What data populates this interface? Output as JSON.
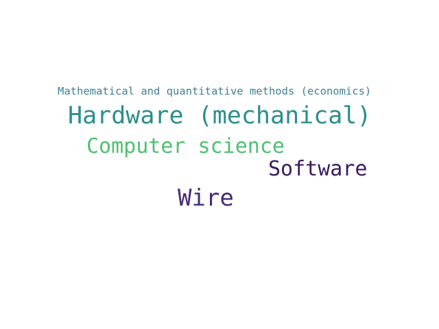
{
  "words": [
    {
      "text": "Mathematical and quantitative methods (economics)",
      "color": "#3d7f92"
    },
    {
      "text": "Hardware (mechanical)",
      "color": "#2a8e8b"
    },
    {
      "text": "Computer science",
      "color": "#4fc06f"
    },
    {
      "text": "Software",
      "color": "#3a1a5c"
    },
    {
      "text": "Wire",
      "color": "#482b74"
    }
  ]
}
